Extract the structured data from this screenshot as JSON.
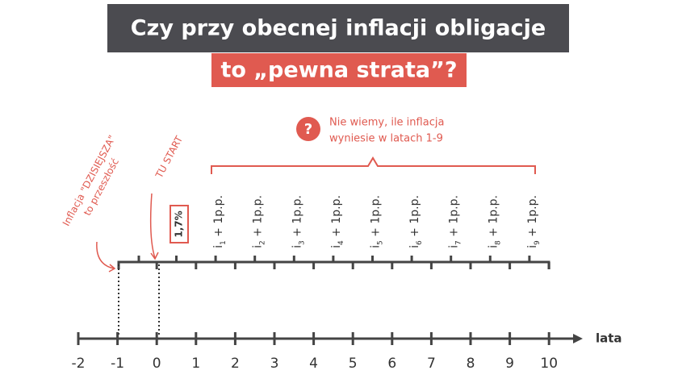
{
  "header": {
    "title_lines": [
      "Czy przy obecnej inflacji obligacje",
      "to „pewna strata”?"
    ]
  },
  "annotations": {
    "past": [
      "Inflacja \"DZISIEJSZA\"",
      "to przeszłość"
    ],
    "start": "TU START",
    "first_rate": "1,7%",
    "question": {
      "icon": "?",
      "lines": [
        "Nie wiemy, ile inflacja",
        "wyniesie w latach 1-9"
      ]
    }
  },
  "rates": [
    {
      "base": "i",
      "sub": "1",
      "rest": " + 1p.p."
    },
    {
      "base": "i",
      "sub": "2",
      "rest": " + 1p.p."
    },
    {
      "base": "i",
      "sub": "3",
      "rest": " + 1p.p."
    },
    {
      "base": "i",
      "sub": "4",
      "rest": " + 1p.p."
    },
    {
      "base": "i",
      "sub": "5",
      "rest": " + 1p.p."
    },
    {
      "base": "i",
      "sub": "6",
      "rest": " + 1p.p."
    },
    {
      "base": "i",
      "sub": "7",
      "rest": " + 1p.p."
    },
    {
      "base": "i",
      "sub": "8",
      "rest": " + 1p.p."
    },
    {
      "base": "i",
      "sub": "9",
      "rest": " + 1p.p."
    }
  ],
  "timeline": {
    "ticks": [
      "-2",
      "-1",
      "0",
      "1",
      "2",
      "3",
      "4",
      "5",
      "6",
      "7",
      "8",
      "9",
      "10"
    ],
    "axis_label": "lata"
  }
}
